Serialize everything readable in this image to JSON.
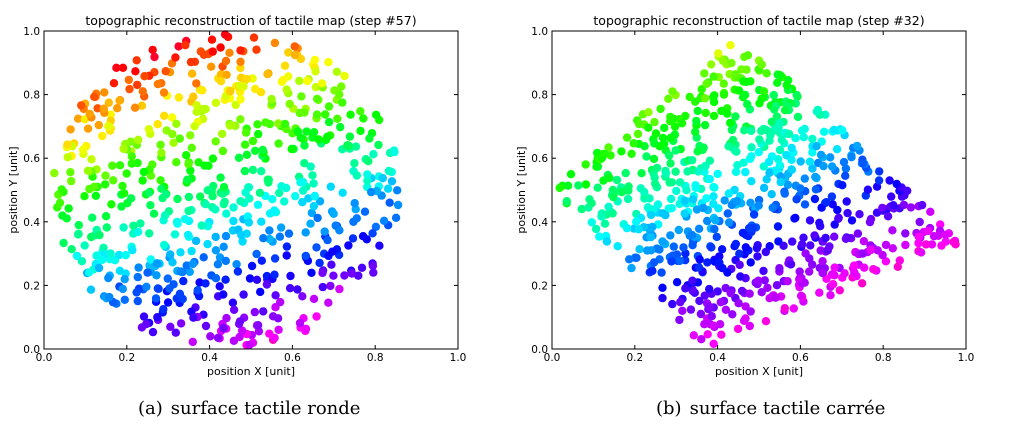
{
  "captions": [
    {
      "tag": "(a)",
      "text": "surface tactile ronde"
    },
    {
      "tag": "(b)",
      "text": "surface tactile carrée"
    }
  ],
  "chart_data": [
    {
      "type": "scatter",
      "title": "topographic reconstruction of tactile map (step #57)",
      "xlabel": "position X [unit]",
      "ylabel": "position Y [unit]",
      "xlim": [
        0.0,
        1.0
      ],
      "ylim": [
        0.0,
        1.0
      ],
      "xticks": [
        "0.0",
        "0.2",
        "0.4",
        "0.6",
        "0.8",
        "1.0"
      ],
      "yticks": [
        "0.0",
        "0.2",
        "0.4",
        "0.6",
        "0.8",
        "1.0"
      ],
      "grid": false,
      "shape": "disc",
      "center": [
        0.44,
        0.5
      ],
      "radius": [
        0.42,
        0.5
      ],
      "n_points": 700,
      "color_mapping": "hue varies with position around the centre, rainbow from red/magenta at top through blue, cyan, green, yellow, orange to red at the bottom",
      "point_colors": [
        "#ff0000",
        "#ff8000",
        "#ffff00",
        "#00ff00",
        "#00ffff",
        "#0000ff",
        "#ff00ff"
      ]
    },
    {
      "type": "scatter",
      "title": "topographic reconstruction of tactile map (step #32)",
      "xlabel": "position X [unit]",
      "ylabel": "position Y [unit]",
      "xlim": [
        0.0,
        1.0
      ],
      "ylim": [
        0.0,
        1.0
      ],
      "xticks": [
        "0.0",
        "0.2",
        "0.4",
        "0.6",
        "0.8",
        "1.0"
      ],
      "yticks": [
        "0.0",
        "0.2",
        "0.4",
        "0.6",
        "0.8",
        "1.0"
      ],
      "grid": false,
      "shape": "quadrilateral",
      "corners": [
        [
          0.45,
          0.99
        ],
        [
          0.0,
          0.5
        ],
        [
          0.37,
          0.0
        ],
        [
          1.0,
          0.33
        ]
      ],
      "n_points": 760,
      "color_mapping": "hue varies with position, red/orange at upper-left, yellow and green in upper centre, cyan and blue towards the lower right, magenta and red at the bottom",
      "point_colors": [
        "#ff0000",
        "#ff8000",
        "#ffff00",
        "#00ff00",
        "#00ffff",
        "#0000ff",
        "#ff00ff"
      ]
    }
  ]
}
